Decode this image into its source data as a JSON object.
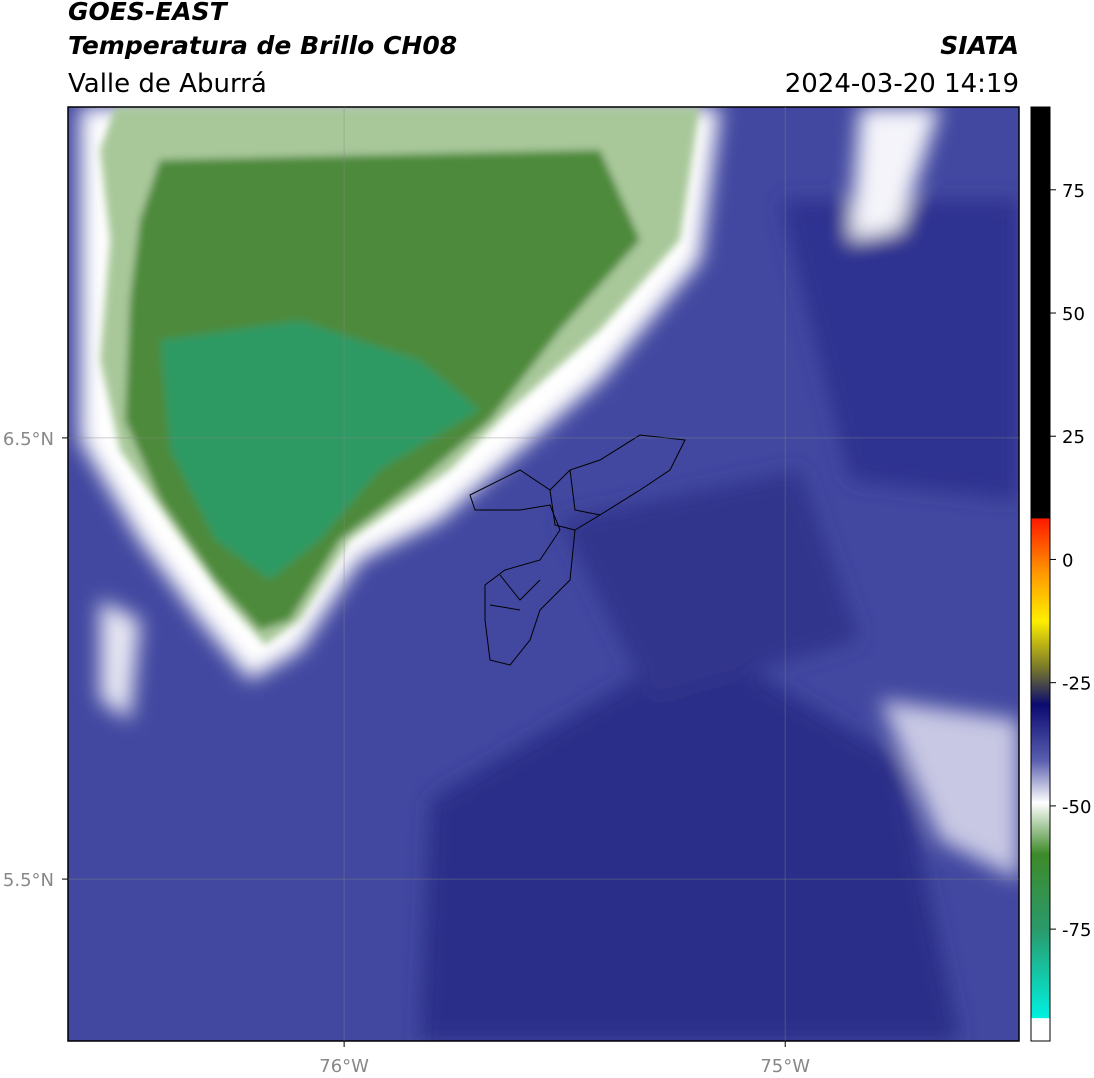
{
  "header": {
    "title": "GOES-EAST",
    "subtitle": "Temperatura de Brillo CH08",
    "region": "Valle de Aburrá",
    "source": "SIATA",
    "timestamp": "2024-03-20 14:19"
  },
  "map": {
    "xlim": [
      -76.626,
      -74.47
    ],
    "ylim": [
      5.133,
      7.25
    ],
    "xticks": [
      {
        "value": -76,
        "label": "76°W"
      },
      {
        "value": -75,
        "label": "75°W"
      }
    ],
    "yticks": [
      {
        "value": 6.5,
        "label": "6.5°N"
      },
      {
        "value": 5.5,
        "label": "5.5°N"
      }
    ],
    "grid": true
  },
  "colorbar": {
    "lim": [
      -97.7,
      91.8
    ],
    "ticks": [
      75,
      50,
      25,
      0,
      -25,
      -50,
      -75
    ]
  }
}
